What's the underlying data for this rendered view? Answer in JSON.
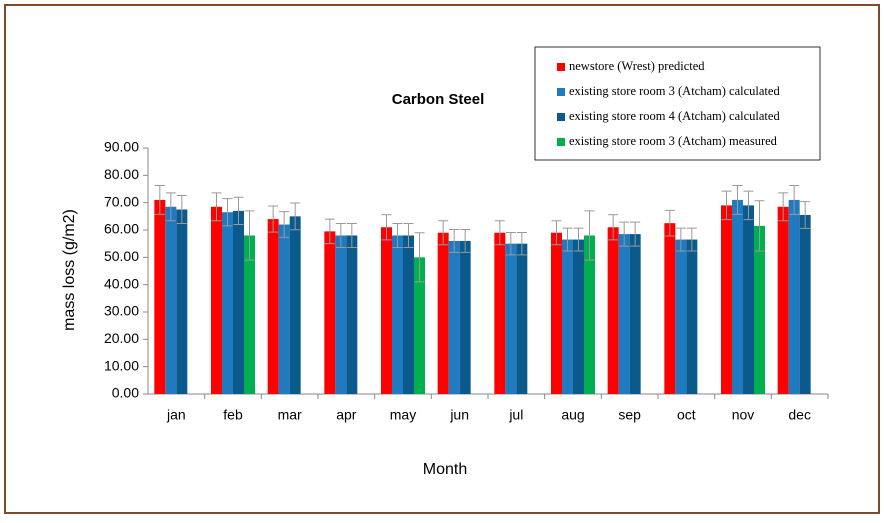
{
  "chart_data": {
    "type": "bar",
    "title": "Carbon Steel",
    "xlabel": "Month",
    "ylabel": "mass loss (g/m2)",
    "categories": [
      "jan",
      "feb",
      "mar",
      "apr",
      "may",
      "jun",
      "jul",
      "aug",
      "sep",
      "oct",
      "nov",
      "dec"
    ],
    "series": [
      {
        "name": "newstore (Wrest) predicted",
        "color": "#ff0000",
        "values": [
          71,
          68.5,
          64,
          59.5,
          61,
          59,
          59,
          59,
          61,
          62.5,
          69,
          68.5
        ],
        "errors": [
          5.3,
          5.1,
          4.8,
          4.5,
          4.6,
          4.4,
          4.4,
          4.4,
          4.6,
          4.7,
          5.2,
          5.1
        ]
      },
      {
        "name": "existing store room 3 (Atcham) calculated",
        "color": "#1f7ac0",
        "values": [
          68.5,
          66.5,
          62,
          58,
          58,
          56,
          55,
          56.5,
          58.5,
          56.5,
          71,
          71
        ],
        "errors": [
          5.1,
          5,
          4.7,
          4.4,
          4.4,
          4.2,
          4.1,
          4.2,
          4.4,
          4.2,
          5.3,
          5.3
        ]
      },
      {
        "name": "existing store room 4 (Atcham) calculated",
        "color": "#0b5a8c",
        "values": [
          67.5,
          67,
          65,
          58,
          58,
          56,
          55,
          56.5,
          58.5,
          56.5,
          69,
          65.5
        ],
        "errors": [
          5.1,
          5,
          4.9,
          4.4,
          4.4,
          4.2,
          4.1,
          4.2,
          4.4,
          4.2,
          5.2,
          4.9
        ]
      },
      {
        "name": "existing store room 3 (Atcham) measured",
        "color": "#00b050",
        "values": [
          null,
          58,
          null,
          null,
          50,
          null,
          null,
          58,
          null,
          null,
          61.5,
          null
        ],
        "errors": [
          null,
          9,
          null,
          null,
          9,
          null,
          null,
          9,
          null,
          null,
          9.2,
          null
        ]
      }
    ],
    "ylim": [
      0,
      90
    ],
    "yticks": [
      {
        "value": 0,
        "label": "0.00"
      },
      {
        "value": 10,
        "label": "10.00"
      },
      {
        "value": 20,
        "label": "20.00"
      },
      {
        "value": 30,
        "label": "30.00"
      },
      {
        "value": 40,
        "label": "40.00"
      },
      {
        "value": 50,
        "label": "50.00"
      },
      {
        "value": 60,
        "label": "60.00"
      },
      {
        "value": 70,
        "label": "70.00"
      },
      {
        "value": 80,
        "label": "80.00"
      },
      {
        "value": 90,
        "label": "90.00"
      }
    ],
    "grid": false,
    "legend": "upper right"
  }
}
